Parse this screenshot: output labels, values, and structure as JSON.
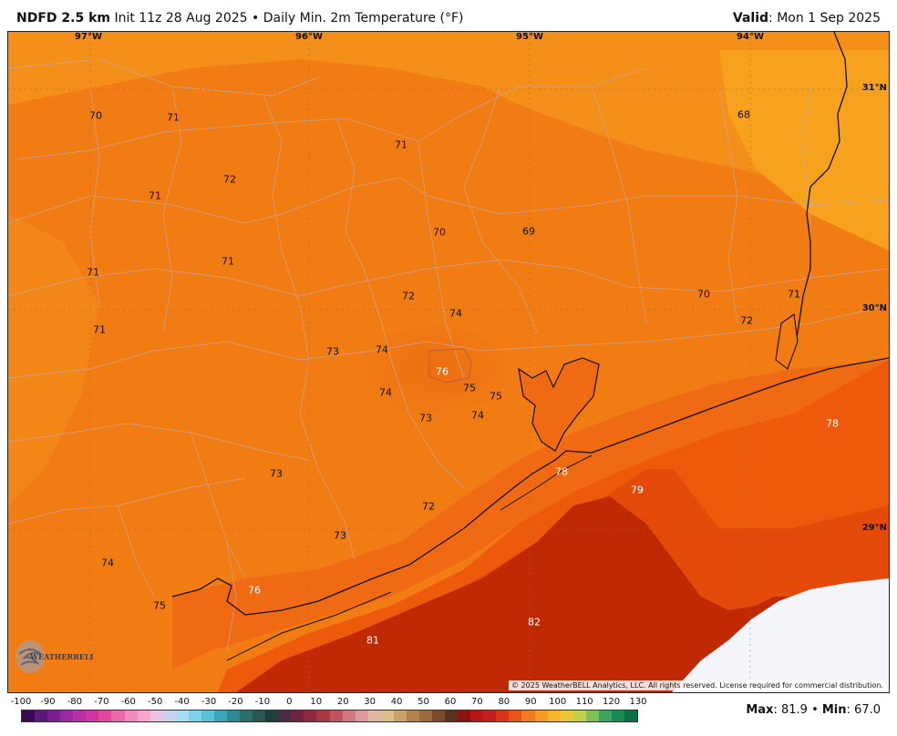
{
  "header": {
    "product": "NDFD 2.5 km",
    "init": "Init 11z 28 Aug 2025",
    "bullet": "•",
    "field": "Daily Min. 2m Temperature (°F)",
    "valid_label": "Valid",
    "valid_value": ": Mon 1 Sep 2025"
  },
  "grid_labels": {
    "lon": [
      "97°W",
      "96°W",
      "95°W",
      "94°W"
    ],
    "lat": [
      "31°N",
      "30°N",
      "29°N"
    ]
  },
  "values": [
    "70",
    "71",
    "72",
    "71",
    "71",
    "71",
    "71",
    "71",
    "70",
    "69",
    "68",
    "72",
    "74",
    "73",
    "74",
    "76",
    "75",
    "75",
    "74",
    "73",
    "74",
    "70",
    "72",
    "71",
    "73",
    "72",
    "73",
    "74",
    "75",
    "76",
    "78",
    "78",
    "79",
    "82",
    "81"
  ],
  "copyright": "© 2025 WeatherBELL Analytics, LLC. All rights reserved. License required for commercial distribution.",
  "logo_text": "WeatherBELL",
  "colorbar": {
    "ticks": [
      "-100",
      "-90",
      "-80",
      "-70",
      "-60",
      "-50",
      "-40",
      "-30",
      "-20",
      "-10",
      "0",
      "10",
      "20",
      "30",
      "40",
      "50",
      "60",
      "70",
      "80",
      "90",
      "100",
      "110",
      "120",
      "130"
    ],
    "colors": [
      "#3b0a4f",
      "#5a1a7a",
      "#7a1f93",
      "#9a2aa8",
      "#b82fa6",
      "#d236a0",
      "#e0489a",
      "#e86aa8",
      "#f08bbb",
      "#f4a7cb",
      "#e8c3e3",
      "#c9d3ee",
      "#a6dcef",
      "#7fd3e8",
      "#56c2d8",
      "#3aa6b8",
      "#2f8a93",
      "#2d6f6a",
      "#2a564f",
      "#1f3f3a",
      "#4a2a45",
      "#6e2345",
      "#8c2a3b",
      "#a83a45",
      "#bf5560",
      "#cf7a80",
      "#d99aa0",
      "#e0b7a6",
      "#d9bf8f",
      "#c7a26b",
      "#b3814c",
      "#9c6a3b",
      "#7a4a2a",
      "#5a3320",
      "#8a1414",
      "#b31818",
      "#c21f1f",
      "#d93417",
      "#e8531a",
      "#f07a1d",
      "#f59a22",
      "#f5b629",
      "#e8c83a",
      "#bfd04a",
      "#7fc158",
      "#3aa560",
      "#1a8a55",
      "#0e6e45"
    ]
  },
  "stats": {
    "max_label": "Max",
    "max_value": ": 81.9",
    "bullet": "•",
    "min_label": "Min",
    "min_value": ": 67.0"
  }
}
